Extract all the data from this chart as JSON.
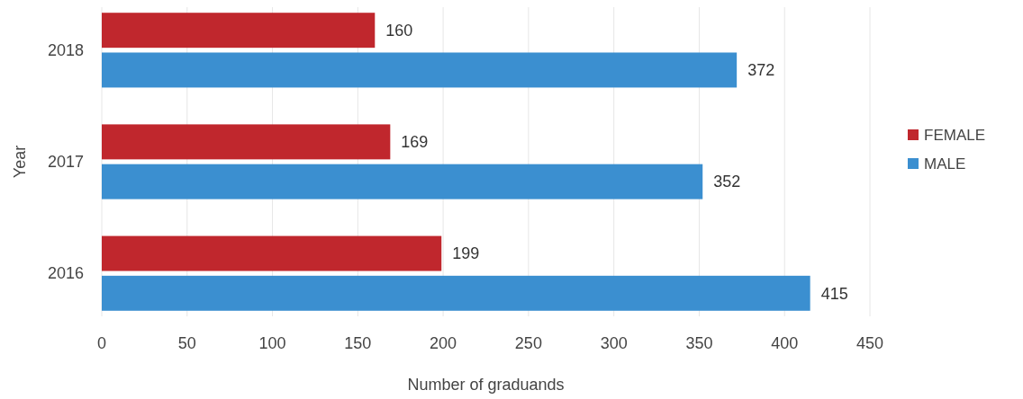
{
  "chart_data": {
    "type": "bar",
    "orientation": "horizontal",
    "xlabel": "Number of graduands",
    "ylabel": "Year",
    "categories": [
      "2018",
      "2017",
      "2016"
    ],
    "series": [
      {
        "name": "FEMALE",
        "color": "#c0272d",
        "values": [
          160,
          169,
          199
        ]
      },
      {
        "name": "MALE",
        "color": "#3b8fd0",
        "values": [
          372,
          352,
          415
        ]
      }
    ],
    "xlim": [
      0,
      450
    ],
    "xticks": [
      0,
      50,
      100,
      150,
      200,
      250,
      300,
      350,
      400,
      450
    ],
    "grid": "x",
    "legend": "right",
    "data_labels": true
  }
}
